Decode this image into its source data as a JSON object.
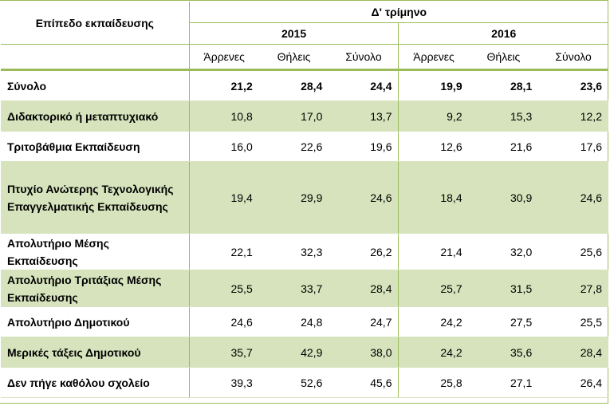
{
  "table": {
    "category_header": "Επίπεδο εκπαίδευσης",
    "period_header": "Δ' τρίμηνο",
    "years": [
      "2015",
      "2016"
    ],
    "subheaders": [
      "Άρρενες",
      "Θήλεις",
      "Σύνολο",
      "Άρρενες",
      "Θήλεις",
      "Σύνολο"
    ],
    "rows": [
      {
        "label": "Σύνολο",
        "values": [
          "21,2",
          "28,4",
          "24,4",
          "19,9",
          "28,1",
          "23,6"
        ]
      },
      {
        "label": "Διδακτορικό ή μεταπτυχιακό",
        "values": [
          "10,8",
          "17,0",
          "13,7",
          "9,2",
          "15,3",
          "12,2"
        ]
      },
      {
        "label": "Τριτοβάθμια Εκπαίδευση",
        "values": [
          "16,0",
          "22,6",
          "19,6",
          "12,6",
          "21,6",
          "17,6"
        ]
      },
      {
        "label": "Πτυχίο Ανώτερης Τεχνολογικής Επαγγελματικής Εκπαίδευσης",
        "values": [
          "19,4",
          "29,9",
          "24,6",
          "18,4",
          "30,9",
          "24,6"
        ]
      },
      {
        "label": "Απολυτήριο Μέσης Εκπαίδευσης",
        "values": [
          "22,1",
          "32,3",
          "26,2",
          "21,4",
          "32,0",
          "25,6"
        ]
      },
      {
        "label": "Απολυτήριο Τριτάξιας Μέσης Εκπαίδευσης",
        "values": [
          "25,5",
          "33,7",
          "28,4",
          "25,7",
          "31,5",
          "27,8"
        ]
      },
      {
        "label": "Απολυτήριο Δημοτικού",
        "values": [
          "24,6",
          "24,8",
          "24,7",
          "24,2",
          "27,5",
          "25,5"
        ]
      },
      {
        "label": "Μερικές τάξεις Δημοτικού",
        "values": [
          "35,7",
          "42,9",
          "38,0",
          "24,2",
          "35,6",
          "28,4"
        ]
      },
      {
        "label": "Δεν πήγε καθόλου σχολείο",
        "values": [
          "39,3",
          "52,6",
          "45,6",
          "25,8",
          "27,1",
          "26,4"
        ]
      }
    ]
  }
}
